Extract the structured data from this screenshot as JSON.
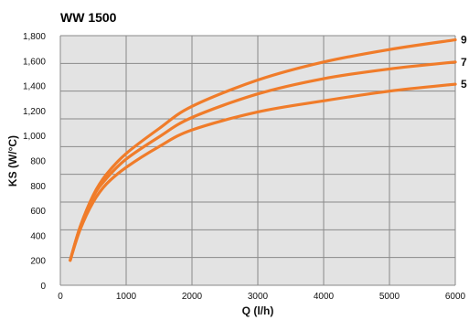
{
  "chart_data": {
    "type": "line",
    "title": "WW 1500",
    "xlabel": "Q (l/h)",
    "ylabel": "KS (W/°C)",
    "xlim": [
      0,
      6000
    ],
    "ylim": [
      0,
      1800
    ],
    "x_ticks": [
      "0",
      "1000",
      "2000",
      "3000",
      "4000",
      "5000",
      "6000"
    ],
    "x_tick_values": [
      0,
      1000,
      2000,
      3000,
      4000,
      5000,
      6000
    ],
    "y_ticks": [
      "0",
      "200",
      "400",
      "600",
      "800",
      "1,000",
      "1,200",
      "1,400",
      "1,600",
      "1,800"
    ],
    "y_tick_values": [
      0,
      200,
      400,
      600,
      800,
      1000,
      1200,
      1400,
      1600,
      1800
    ],
    "y_tick_display": [
      "0",
      "200",
      "400",
      "600",
      "800",
      "800",
      "1,000",
      "1,200",
      "1,400",
      "1,600",
      "1,800"
    ],
    "grid": true,
    "series": [
      {
        "name": "9",
        "x": [
          150,
          300,
          500,
          700,
          1000,
          1500,
          2000,
          3000,
          4000,
          5000,
          6000
        ],
        "y": [
          180,
          420,
          650,
          800,
          950,
          1130,
          1290,
          1480,
          1610,
          1700,
          1770
        ]
      },
      {
        "name": "7",
        "x": [
          150,
          300,
          500,
          700,
          1000,
          1500,
          2000,
          3000,
          4000,
          5000,
          6000
        ],
        "y": [
          180,
          420,
          640,
          770,
          910,
          1070,
          1210,
          1380,
          1490,
          1560,
          1610
        ]
      },
      {
        "name": "5",
        "x": [
          150,
          300,
          500,
          700,
          1000,
          1500,
          2000,
          3000,
          4000,
          5000,
          6000
        ],
        "y": [
          180,
          400,
          600,
          730,
          850,
          1000,
          1120,
          1250,
          1330,
          1400,
          1450
        ]
      }
    ],
    "colors": {
      "line": "#f07c2a",
      "title": "#1a5fa8",
      "plot_bg": "#e3e3e3",
      "grid": "#8a8a8a"
    }
  }
}
